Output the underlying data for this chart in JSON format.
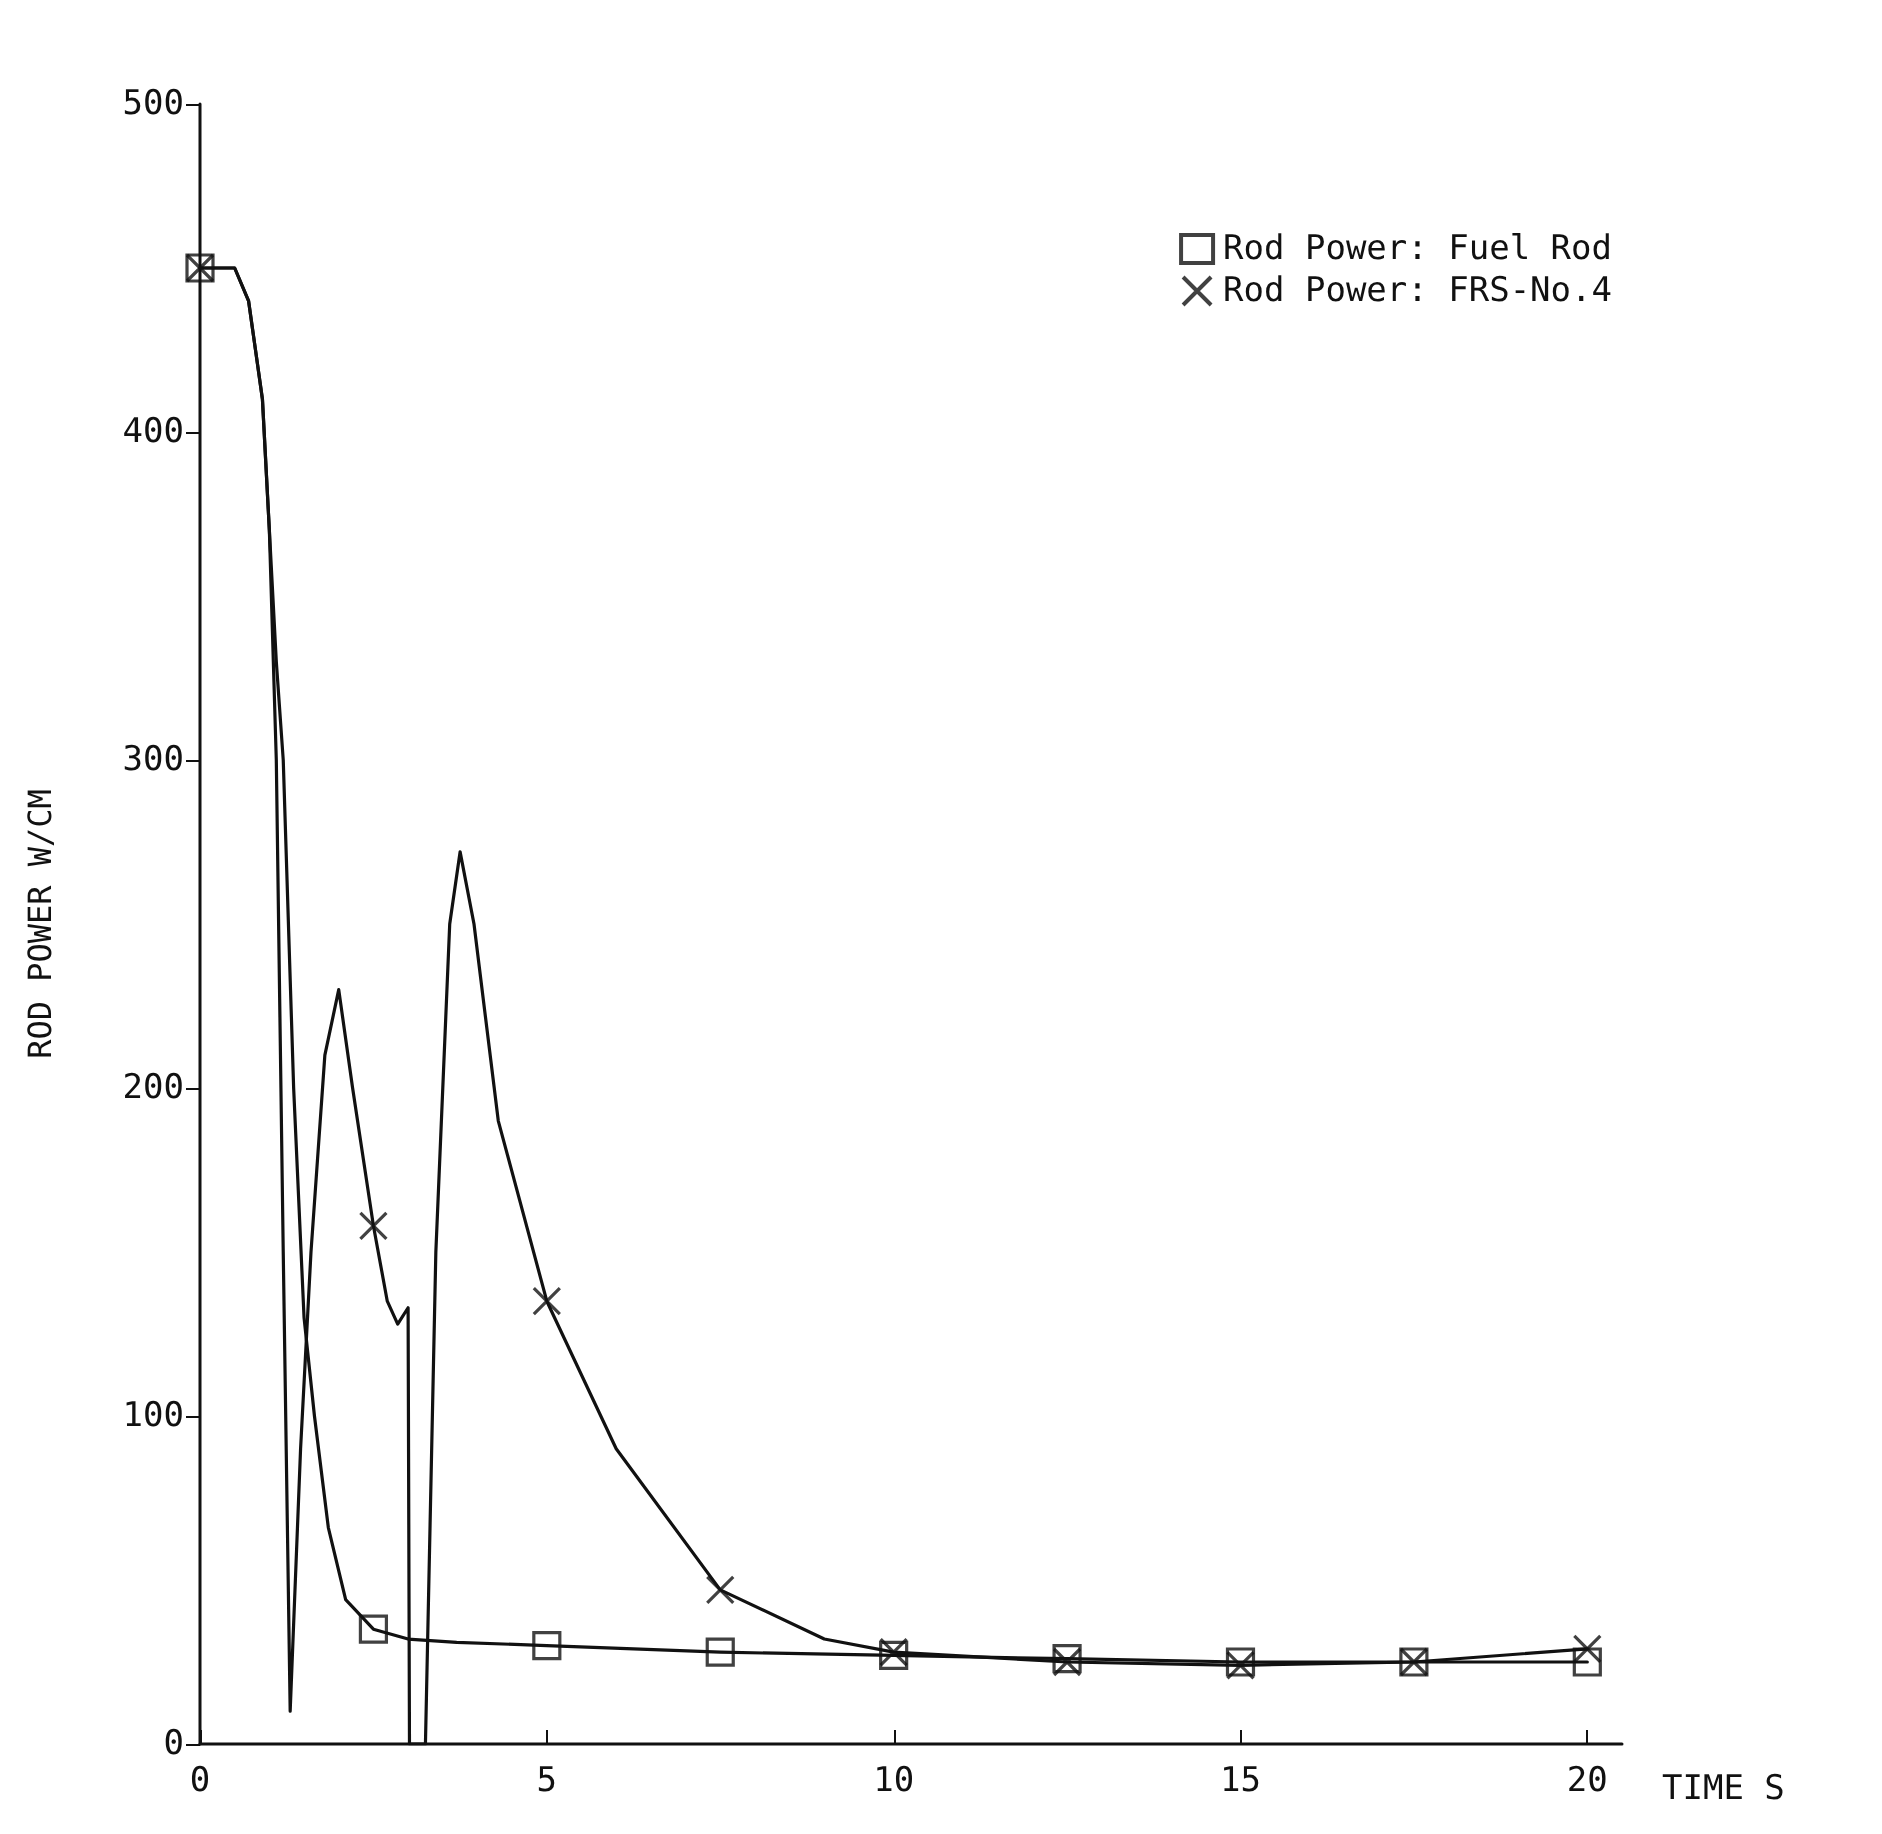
{
  "chart_data": {
    "type": "line",
    "xlabel": "TIME S",
    "ylabel": "ROD POWER W/CM",
    "xlim": [
      0,
      20.5
    ],
    "ylim": [
      0,
      500
    ],
    "xticks": [
      0,
      5,
      10,
      15,
      20
    ],
    "yticks": [
      0,
      100,
      200,
      300,
      400,
      500
    ],
    "grid": false,
    "legend": "top right",
    "line_style": "solid",
    "series": [
      {
        "type": "line",
        "marker": "none",
        "color": "#111111",
        "x": [
          0,
          0.5,
          0.7,
          0.9,
          1.0,
          1.1,
          1.2,
          1.35,
          1.5,
          1.65,
          1.85,
          2.1,
          2.5,
          3.0,
          3.7,
          5,
          7.5,
          10,
          12.5,
          15,
          17.5,
          20
        ],
        "values": [
          450,
          450,
          440,
          410,
          370,
          330,
          300,
          200,
          130,
          100,
          66,
          44,
          35,
          32,
          31,
          30,
          28,
          27,
          26,
          25,
          25,
          25
        ]
      },
      {
        "type": "line",
        "marker": "none",
        "color": "#111111",
        "x": [
          0,
          0.5,
          0.7,
          0.9,
          1.0,
          1.1,
          1.2,
          1.3,
          1.45,
          1.6,
          1.8,
          2.0,
          2.2,
          2.5,
          2.7,
          2.85,
          3.0,
          3.02,
          3.25,
          3.4,
          3.6,
          3.75,
          3.95,
          4.3,
          5,
          6,
          7.5,
          9,
          10,
          12.5,
          15,
          17.5,
          20
        ],
        "values": [
          450,
          450,
          440,
          410,
          370,
          300,
          150,
          10,
          90,
          150,
          210,
          230,
          200,
          158,
          135,
          128,
          133,
          0,
          0,
          150,
          250,
          272,
          250,
          190,
          135,
          90,
          47,
          32,
          28,
          25,
          24,
          25,
          29
        ]
      },
      {
        "type": "scatter",
        "name": "Rod Power: Fuel Rod",
        "marker": "square",
        "color": "#111111",
        "x": [
          0,
          2.5,
          5,
          7.5,
          10,
          12.5,
          15,
          17.5,
          20
        ],
        "values": [
          450,
          35,
          30,
          28,
          27,
          26,
          25,
          25,
          25
        ]
      },
      {
        "type": "scatter",
        "name": "Rod Power: FRS-No.4",
        "marker": "cross",
        "color": "#111111",
        "x": [
          0,
          2.5,
          5,
          7.5,
          10,
          12.5,
          15,
          17.5,
          20
        ],
        "values": [
          450,
          158,
          135,
          47,
          28,
          25,
          24,
          25,
          29
        ]
      }
    ]
  }
}
